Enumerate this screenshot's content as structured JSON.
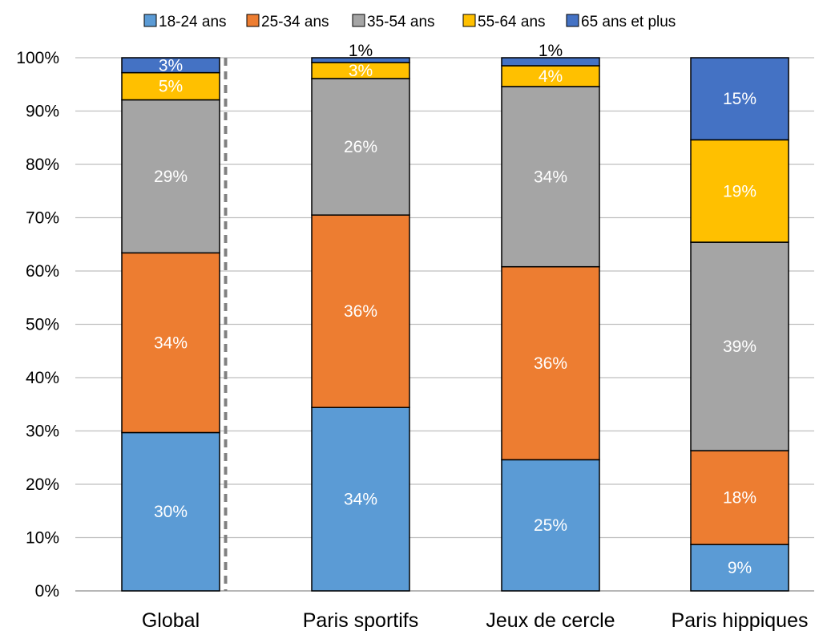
{
  "chart_data": {
    "type": "bar",
    "stacked": true,
    "normalized": true,
    "categories": [
      "Global",
      "Paris sportifs",
      "Jeux de cercle",
      "Paris hippiques"
    ],
    "series": [
      {
        "name": "18-24 ans",
        "color": "#5B9BD5",
        "values": [
          29.7,
          34.4,
          24.6,
          8.7
        ],
        "labels": [
          "30%",
          "34%",
          "25%",
          "9%"
        ]
      },
      {
        "name": "25-34 ans",
        "color": "#ED7D31",
        "values": [
          33.7,
          36.1,
          36.2,
          17.6
        ],
        "labels": [
          "34%",
          "36%",
          "36%",
          "18%"
        ]
      },
      {
        "name": "35-54 ans",
        "color": "#A5A5A5",
        "values": [
          28.7,
          25.6,
          33.8,
          39.1
        ],
        "labels": [
          "29%",
          "26%",
          "34%",
          "39%"
        ]
      },
      {
        "name": "55-64 ans",
        "color": "#FFC000",
        "values": [
          5.1,
          3.0,
          3.9,
          19.2
        ],
        "labels": [
          "5%",
          "3%",
          "4%",
          "19%"
        ]
      },
      {
        "name": "65 ans et plus",
        "color": "#4472C4",
        "values": [
          2.8,
          0.9,
          1.5,
          15.4
        ],
        "labels": [
          "3%",
          "1%",
          "1%",
          "15%"
        ]
      }
    ],
    "ylim": [
      0,
      100
    ],
    "yticks": [
      "0%",
      "10%",
      "20%",
      "30%",
      "40%",
      "50%",
      "60%",
      "70%",
      "80%",
      "90%",
      "100%"
    ],
    "grid": true,
    "legend_position": "top",
    "separator_after_category": "Global",
    "title": "",
    "xlabel": "",
    "ylabel": ""
  }
}
